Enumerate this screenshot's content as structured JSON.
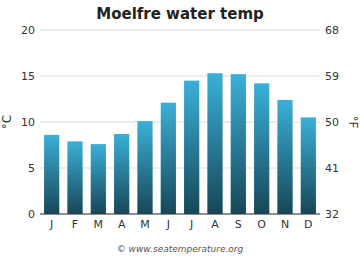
{
  "chart_data": {
    "type": "bar",
    "title": "Moelfre water temp",
    "categories": [
      "J",
      "F",
      "M",
      "A",
      "M",
      "J",
      "J",
      "A",
      "S",
      "O",
      "N",
      "D"
    ],
    "values": [
      8.6,
      7.9,
      7.6,
      8.7,
      10.1,
      12.1,
      14.5,
      15.3,
      15.2,
      14.2,
      12.4,
      10.5
    ],
    "color": "#3ab0d8",
    "ylim": [
      0,
      20
    ],
    "yticks": [
      0,
      5,
      10,
      15,
      20
    ],
    "y2lim": [
      32,
      68
    ],
    "y2ticks": [
      32,
      41,
      50,
      59,
      68
    ],
    "y_label": "°C",
    "y2_label": "°F",
    "annotation": "© www.seatemperature.org",
    "grid": true
  }
}
